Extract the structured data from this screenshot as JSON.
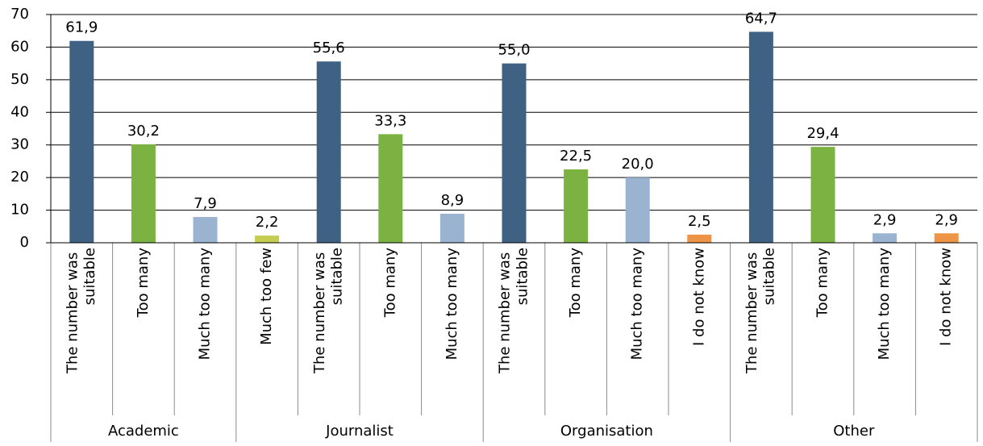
{
  "chart_data": {
    "type": "bar",
    "groups": [
      {
        "name": "Academic",
        "categories": [
          "The number was suitable",
          "Too many",
          "Much too many"
        ],
        "values": [
          61.9,
          30.2,
          7.9
        ],
        "value_labels": [
          "61,9",
          "30,2",
          "7,9"
        ],
        "colors": [
          "#3f6284",
          "#7bb241",
          "#9ab3d1"
        ]
      },
      {
        "name": "Journalist",
        "categories": [
          "Much too few",
          "The number was suitable",
          "Too many",
          "Much too many"
        ],
        "values": [
          2.2,
          55.6,
          33.3,
          8.9
        ],
        "value_labels": [
          "2,2",
          "55,6",
          "33,3",
          "8,9"
        ],
        "colors": [
          "#c5cd50",
          "#3f6284",
          "#7bb241",
          "#9ab3d1"
        ]
      },
      {
        "name": "Organisation",
        "categories": [
          "The number was suitable",
          "Too many",
          "Much too many",
          "I do not know"
        ],
        "values": [
          55.0,
          22.5,
          20.0,
          2.5
        ],
        "value_labels": [
          "55,0",
          "22,5",
          "20,0",
          "2,5"
        ],
        "colors": [
          "#3f6284",
          "#7bb241",
          "#9ab3d1",
          "#ee9446"
        ]
      },
      {
        "name": "Other",
        "categories": [
          "The number was suitable",
          "Too many",
          "Much too many",
          "I do not know"
        ],
        "values": [
          64.7,
          29.4,
          2.9,
          2.9
        ],
        "value_labels": [
          "64,7",
          "29,4",
          "2,9",
          "2,9"
        ],
        "colors": [
          "#3f6284",
          "#7bb241",
          "#9ab3d1",
          "#ee9446"
        ]
      }
    ],
    "ylim": [
      0,
      70
    ],
    "yticks": [
      0,
      10,
      20,
      30,
      40,
      50,
      60,
      70
    ],
    "grid": true
  }
}
